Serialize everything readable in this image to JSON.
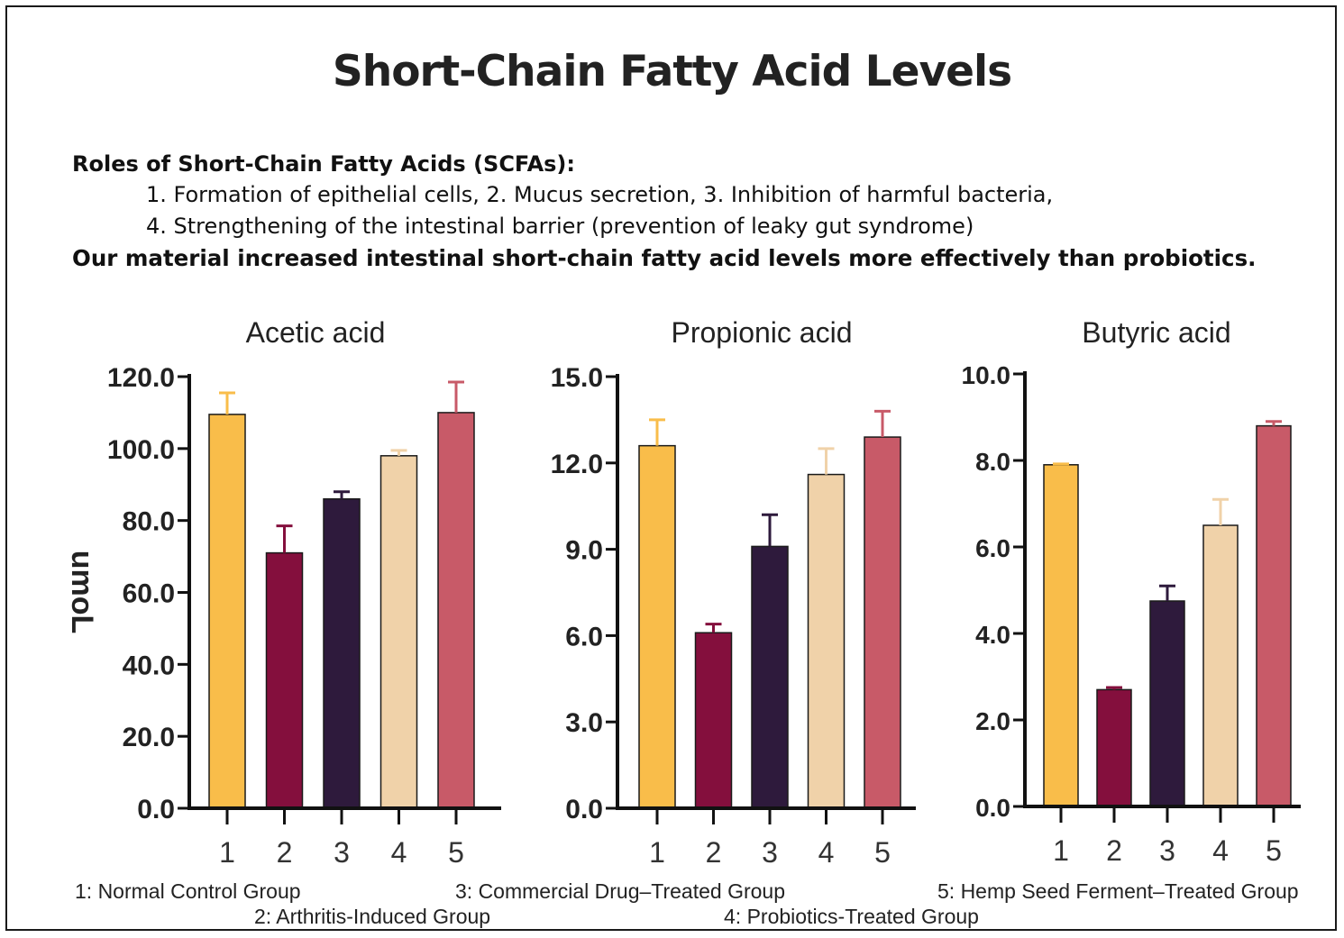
{
  "title": "Short-Chain Fatty Acid Levels",
  "intro": {
    "heading": "Roles of Short-Chain Fatty Acids (SCFAs):",
    "line1": "1. Formation of epithelial cells, 2. Mucus secretion, 3. Inhibition of harmful bacteria,",
    "line2": "4. Strengthening of the intestinal barrier (prevention of leaky gut syndrome)",
    "conclusion": "Our material increased intestinal short-chain fatty acid levels more effectively than probiotics."
  },
  "colors": {
    "group1": "#f9bd4a",
    "group2": "#840f3d",
    "group3": "#2e1a3c",
    "group4": "#f0d2a9",
    "group5": "#c85a68"
  },
  "chart_data": [
    {
      "type": "bar",
      "title": "Acetic acid",
      "ylabel": "umoL",
      "categories": [
        "1",
        "2",
        "3",
        "4",
        "5"
      ],
      "values": [
        109.5,
        71.0,
        86.0,
        98.0,
        110.0
      ],
      "errors": [
        6.0,
        7.5,
        2.0,
        1.5,
        8.5
      ],
      "ylim": [
        0,
        120
      ],
      "yticks": [
        "0.0",
        "20.0",
        "40.0",
        "60.0",
        "80.0",
        "100.0",
        "120.0"
      ]
    },
    {
      "type": "bar",
      "title": "Propionic acid",
      "ylabel": "",
      "categories": [
        "1",
        "2",
        "3",
        "4",
        "5"
      ],
      "values": [
        12.6,
        6.1,
        9.1,
        11.6,
        12.9
      ],
      "errors": [
        0.9,
        0.3,
        1.1,
        0.9,
        0.9
      ],
      "ylim": [
        0,
        15
      ],
      "yticks": [
        "0.0",
        "3.0",
        "6.0",
        "9.0",
        "12.0",
        "15.0"
      ]
    },
    {
      "type": "bar",
      "title": "Butyric acid",
      "ylabel": "",
      "categories": [
        "1",
        "2",
        "3",
        "4",
        "5"
      ],
      "values": [
        7.9,
        2.7,
        4.75,
        6.5,
        8.8
      ],
      "errors": [
        0.02,
        0.05,
        0.35,
        0.6,
        0.1
      ],
      "ylim": [
        0,
        10
      ],
      "yticks": [
        "0.0",
        "2.0",
        "4.0",
        "6.0",
        "8.0",
        "10.0"
      ]
    }
  ],
  "legend": {
    "g1": "1: Normal Control Group",
    "g2": "2: Arthritis-Induced Group",
    "g3": "3: Commercial Drug–Treated Group",
    "g4": "4: Probiotics-Treated Group",
    "g5": "5: Hemp Seed Ferment–Treated Group"
  }
}
